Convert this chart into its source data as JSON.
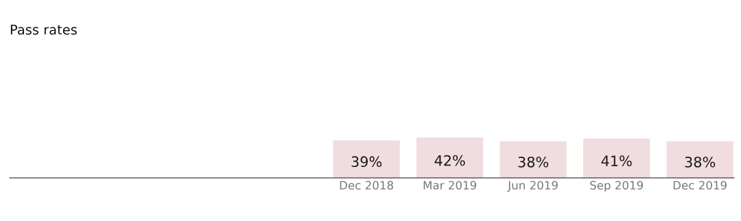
{
  "chart_data": {
    "type": "bar",
    "title": "Pass rates",
    "categories": [
      "Dec 2018",
      "Mar 2019",
      "Jun 2019",
      "Sep 2019",
      "Dec 2019"
    ],
    "values": [
      39,
      42,
      38,
      41,
      38
    ],
    "value_labels": [
      "39%",
      "42%",
      "38%",
      "41%",
      "38%"
    ],
    "color": "#f0dde0",
    "grid": false,
    "legend": false
  }
}
